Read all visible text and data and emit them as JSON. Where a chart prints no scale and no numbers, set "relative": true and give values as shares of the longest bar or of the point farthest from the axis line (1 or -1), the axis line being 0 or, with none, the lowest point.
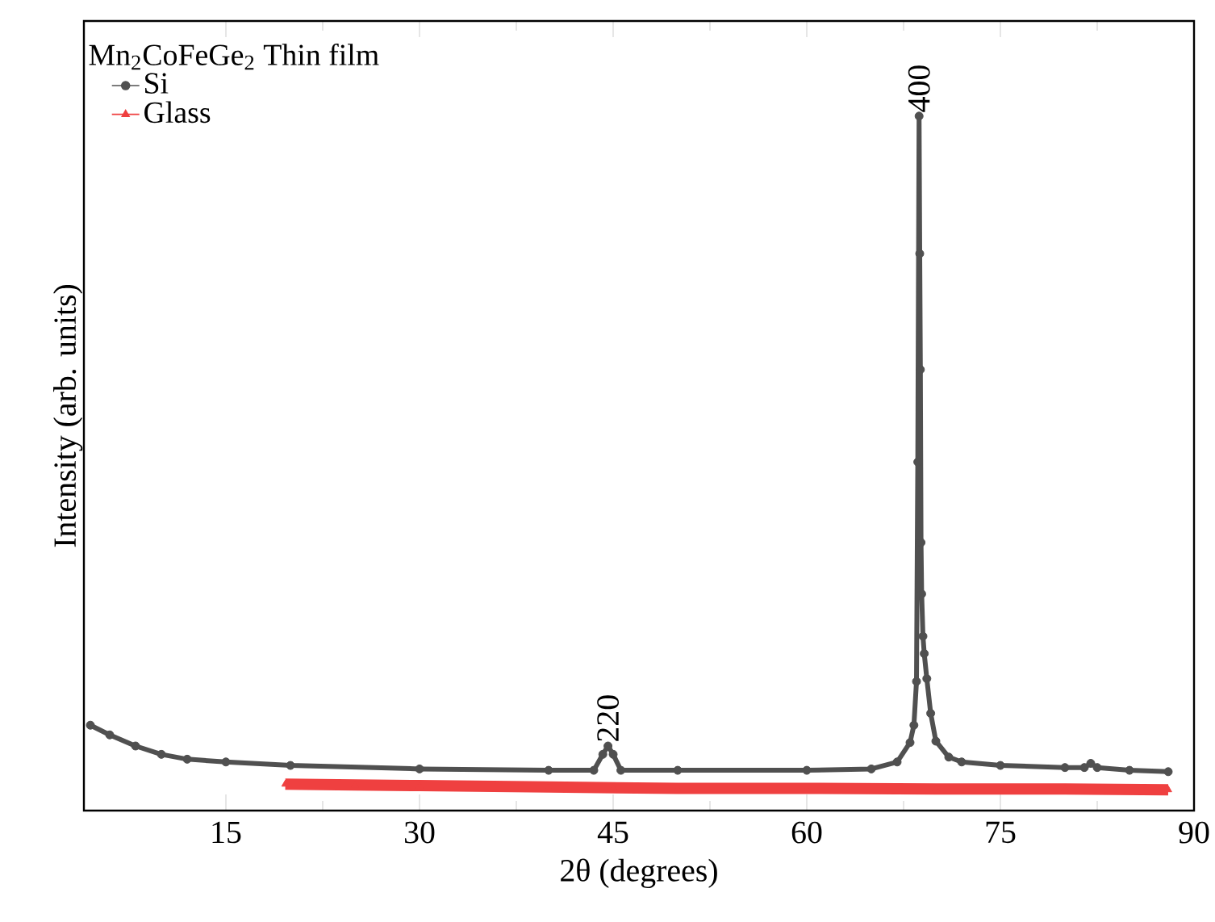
{
  "chart_data": {
    "type": "line",
    "relative": true,
    "xlabel": "2θ (degrees)",
    "ylabel": "Intensity (arb. units)",
    "legend_title": "Mn$_{2}$CoFeGe$_{2}$ Thin film",
    "legend": "top left",
    "xlim": [
      4,
      90
    ],
    "xticks": [
      15,
      30,
      45,
      60,
      75,
      90
    ],
    "series": [
      {
        "name": "Si",
        "color": "#505050",
        "marker": "circle",
        "x": [
          4.5,
          6,
          8,
          10,
          12,
          15,
          20,
          30,
          40,
          43.5,
          44.2,
          44.6,
          45.0,
          45.6,
          50,
          60,
          65,
          67,
          68,
          68.3,
          68.5,
          68.6,
          68.7,
          68.75,
          68.8,
          68.85,
          68.9,
          69.0,
          69.1,
          69.3,
          69.6,
          70,
          71,
          72,
          75,
          80,
          81.5,
          82,
          82.5,
          85,
          88
        ],
        "values": [
          0.123,
          0.109,
          0.093,
          0.081,
          0.074,
          0.07,
          0.065,
          0.06,
          0.058,
          0.058,
          0.081,
          0.093,
          0.081,
          0.058,
          0.058,
          0.058,
          0.06,
          0.07,
          0.098,
          0.123,
          0.186,
          0.502,
          1.0,
          0.802,
          0.635,
          0.386,
          0.312,
          0.251,
          0.226,
          0.19,
          0.14,
          0.1,
          0.077,
          0.07,
          0.065,
          0.062,
          0.062,
          0.068,
          0.062,
          0.058,
          0.056
        ]
      },
      {
        "name": "Glass",
        "color": "#ef4040",
        "marker": "triangle",
        "x": [
          19.6,
          25,
          30,
          40,
          45,
          50,
          60,
          70,
          80,
          88
        ],
        "values": [
          0.038,
          0.037,
          0.036,
          0.034,
          0.033,
          0.032,
          0.032,
          0.031,
          0.031,
          0.03
        ]
      }
    ],
    "annotations": [
      {
        "text": "220",
        "x": 44.6,
        "y": 0.093
      },
      {
        "text": "400",
        "x": 68.7,
        "y": 1.0
      }
    ]
  }
}
